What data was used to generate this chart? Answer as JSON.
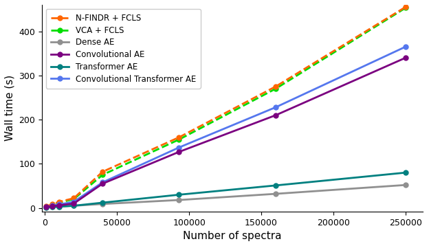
{
  "x": [
    1000,
    5000,
    10000,
    20000,
    40000,
    93000,
    160000,
    250000
  ],
  "nfindr_fcls": [
    4,
    8,
    14,
    22,
    82,
    160,
    275,
    455
  ],
  "vca_fcls": [
    3,
    7,
    12,
    20,
    75,
    155,
    270,
    453
  ],
  "dense_ae": [
    1,
    2,
    3,
    5,
    9,
    18,
    32,
    52
  ],
  "conv_ae": [
    2,
    4,
    6,
    10,
    55,
    127,
    210,
    340
  ],
  "trans_ae": [
    1,
    2,
    3,
    5,
    12,
    30,
    51,
    80
  ],
  "conv_trans_ae": [
    2,
    5,
    8,
    14,
    58,
    137,
    228,
    365
  ],
  "legend_labels": [
    "N-FINDR + FCLS",
    "VCA + FCLS",
    "Dense AE",
    "Convolutional AE",
    "Transformer AE",
    "Convolutional Transformer AE"
  ],
  "colors": {
    "nfindr_fcls": "#FF6600",
    "vca_fcls": "#00DD00",
    "dense_ae": "#909090",
    "conv_ae": "#7B0080",
    "trans_ae": "#008080",
    "conv_trans_ae": "#5577EE"
  },
  "xlabel": "Number of spectra",
  "ylabel": "Wall time (s)",
  "ylim": [
    -8,
    460
  ],
  "xlim": [
    -2000,
    262000
  ],
  "yticks": [
    0,
    100,
    200,
    300,
    400
  ],
  "xticks": [
    0,
    50000,
    100000,
    150000,
    200000,
    250000
  ],
  "xtick_labels": [
    "0",
    "50000",
    "100000",
    "150000",
    "200000",
    "250000"
  ]
}
